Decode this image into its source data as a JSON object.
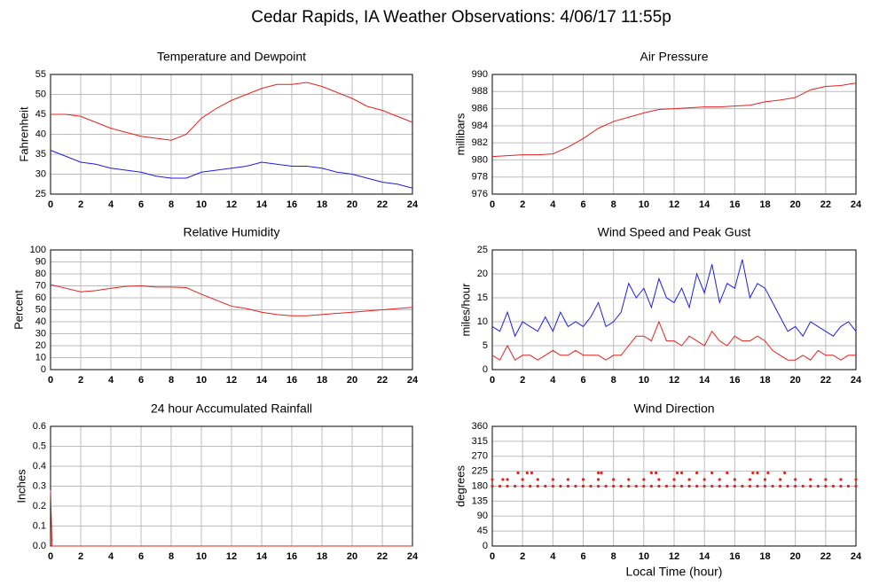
{
  "title": "Cedar Rapids, IA Weather Observations: 4/06/17 11:55p",
  "xlabel": "Local Time (hour)",
  "chart_data": [
    {
      "type": "line",
      "title": "Temperature and Dewpoint",
      "ylabel": "Fahrenheit",
      "x": [
        0,
        1,
        2,
        3,
        4,
        5,
        6,
        7,
        8,
        9,
        10,
        11,
        12,
        13,
        14,
        15,
        16,
        17,
        18,
        19,
        20,
        21,
        22,
        23,
        24
      ],
      "xlim": [
        0,
        24
      ],
      "xticks": [
        0,
        2,
        4,
        6,
        8,
        10,
        12,
        14,
        16,
        18,
        20,
        22,
        24
      ],
      "ylim": [
        25,
        55
      ],
      "yticks": [
        25,
        30,
        35,
        40,
        45,
        50,
        55
      ],
      "grid": true,
      "series": [
        {
          "color": "#e8201c",
          "values": [
            45,
            45,
            44.5,
            43,
            41.5,
            40.5,
            39.5,
            39,
            38.5,
            40,
            44,
            46.5,
            48.5,
            50,
            51.5,
            52.5,
            52.5,
            53,
            52,
            50.5,
            49,
            47,
            46,
            44.5,
            43
          ]
        },
        {
          "color": "#1c1ce8",
          "values": [
            36,
            34.5,
            33,
            32.5,
            31.5,
            31,
            30.5,
            29.5,
            29,
            29,
            30.5,
            31,
            31.5,
            32,
            33,
            32.5,
            32,
            32,
            31.5,
            30.5,
            30,
            29,
            28,
            27.5,
            26.5
          ]
        }
      ]
    },
    {
      "type": "line",
      "title": "Air Pressure",
      "ylabel": "millibars",
      "x": [
        0,
        1,
        2,
        3,
        4,
        5,
        6,
        7,
        8,
        9,
        10,
        11,
        12,
        13,
        14,
        15,
        16,
        17,
        18,
        19,
        20,
        21,
        22,
        23,
        24
      ],
      "xlim": [
        0,
        24
      ],
      "xticks": [
        0,
        2,
        4,
        6,
        8,
        10,
        12,
        14,
        16,
        18,
        20,
        22,
        24
      ],
      "ylim": [
        976,
        990
      ],
      "yticks": [
        976,
        978,
        980,
        982,
        984,
        986,
        988,
        990
      ],
      "grid": true,
      "series": [
        {
          "color": "#e8201c",
          "values": [
            980.4,
            980.5,
            980.6,
            980.6,
            980.7,
            981.5,
            982.5,
            983.7,
            984.5,
            985,
            985.5,
            985.9,
            986,
            986.1,
            986.2,
            986.2,
            986.3,
            986.4,
            986.8,
            987,
            987.3,
            988.2,
            988.6,
            988.7,
            989
          ]
        }
      ]
    },
    {
      "type": "line",
      "title": "Relative Humidity",
      "ylabel": "Percent",
      "x": [
        0,
        1,
        2,
        3,
        4,
        5,
        6,
        7,
        8,
        9,
        10,
        11,
        12,
        13,
        14,
        15,
        16,
        17,
        18,
        19,
        20,
        21,
        22,
        23,
        24
      ],
      "xlim": [
        0,
        24
      ],
      "xticks": [
        0,
        2,
        4,
        6,
        8,
        10,
        12,
        14,
        16,
        18,
        20,
        22,
        24
      ],
      "ylim": [
        0,
        100
      ],
      "yticks": [
        0,
        10,
        20,
        30,
        40,
        50,
        60,
        70,
        80,
        90,
        100
      ],
      "grid": true,
      "series": [
        {
          "color": "#e8201c",
          "values": [
            71,
            68,
            65,
            66,
            68,
            69.5,
            70,
            69,
            69,
            68.5,
            63,
            58,
            53,
            51,
            48,
            46,
            45,
            45,
            46,
            47,
            48,
            49,
            50,
            51,
            52
          ]
        }
      ]
    },
    {
      "type": "line",
      "title": "Wind Speed and Peak Gust",
      "ylabel": "miles/hour",
      "x": [
        0,
        0.5,
        1,
        1.5,
        2,
        2.5,
        3,
        3.5,
        4,
        4.5,
        5,
        5.5,
        6,
        6.5,
        7,
        7.5,
        8,
        8.5,
        9,
        9.5,
        10,
        10.5,
        11,
        11.5,
        12,
        12.5,
        13,
        13.5,
        14,
        14.5,
        15,
        15.5,
        16,
        16.5,
        17,
        17.5,
        18,
        18.5,
        19,
        19.5,
        20,
        20.5,
        21,
        21.5,
        22,
        22.5,
        23,
        23.5,
        24
      ],
      "xlim": [
        0,
        24
      ],
      "xticks": [
        0,
        2,
        4,
        6,
        8,
        10,
        12,
        14,
        16,
        18,
        20,
        22,
        24
      ],
      "ylim": [
        0,
        25
      ],
      "yticks": [
        0,
        5,
        10,
        15,
        20,
        25
      ],
      "grid": true,
      "series": [
        {
          "color": "#1c1ce8",
          "values": [
            9,
            8,
            12,
            7,
            10,
            9,
            8,
            11,
            8,
            12,
            9,
            10,
            9,
            11,
            14,
            9,
            10,
            12,
            18,
            15,
            17,
            13,
            19,
            15,
            14,
            17,
            13,
            20,
            16,
            22,
            14,
            18,
            17,
            23,
            15,
            18,
            17,
            14,
            11,
            8,
            9,
            7,
            10,
            9,
            8,
            7,
            9,
            10,
            8
          ]
        },
        {
          "color": "#e8201c",
          "values": [
            3,
            2,
            5,
            2,
            3,
            3,
            2,
            3,
            4,
            3,
            3,
            4,
            3,
            3,
            3,
            2,
            3,
            3,
            5,
            7,
            7,
            6,
            10,
            6,
            6,
            5,
            7,
            6,
            5,
            8,
            6,
            5,
            7,
            6,
            6,
            7,
            6,
            4,
            3,
            2,
            2,
            3,
            2,
            4,
            3,
            3,
            2,
            3,
            3
          ]
        }
      ]
    },
    {
      "type": "line",
      "title": "24 hour Accumulated Rainfall",
      "ylabel": "Inches",
      "x": [
        0,
        0.1,
        24
      ],
      "xlim": [
        0,
        24
      ],
      "xticks": [
        0,
        2,
        4,
        6,
        8,
        10,
        12,
        14,
        16,
        18,
        20,
        22,
        24
      ],
      "ylim": [
        0,
        0.6
      ],
      "yticks": [
        {
          "value": 0,
          "label": "0.0"
        },
        0.1,
        0.2,
        0.3,
        0.4,
        0.5,
        0.6
      ],
      "grid": true,
      "series": [
        {
          "color": "#e8201c",
          "values": [
            0.28,
            0,
            0
          ]
        }
      ]
    },
    {
      "type": "scatter",
      "title": "Wind Direction",
      "ylabel": "degrees",
      "xlim": [
        0,
        24
      ],
      "xticks": [
        0,
        2,
        4,
        6,
        8,
        10,
        12,
        14,
        16,
        18,
        20,
        22,
        24
      ],
      "ylim": [
        0,
        360
      ],
      "yticks": [
        0,
        45,
        90,
        135,
        180,
        225,
        270,
        315,
        360
      ],
      "grid": true,
      "series": [
        {
          "color": "#e8201c",
          "x": [
            0,
            0.5,
            1,
            1.5,
            2,
            2.5,
            3,
            3.5,
            4,
            4.5,
            5,
            5.5,
            6,
            6.5,
            7,
            7.5,
            8,
            8.5,
            9,
            9.5,
            10,
            10.5,
            11,
            11.5,
            12,
            12.5,
            13,
            13.5,
            14,
            14.5,
            15,
            15.5,
            16,
            16.5,
            17,
            17.5,
            18,
            18.5,
            19,
            19.5,
            20,
            20.5,
            21,
            21.5,
            22,
            22.5,
            23,
            23.5,
            24
          ],
          "values": [
            180,
            180,
            180,
            180,
            180,
            180,
            180,
            180,
            180,
            180,
            180,
            180,
            180,
            180,
            180,
            180,
            180,
            180,
            180,
            180,
            180,
            180,
            180,
            180,
            180,
            180,
            180,
            180,
            180,
            180,
            180,
            180,
            180,
            180,
            180,
            180,
            180,
            180,
            180,
            180,
            180,
            180,
            180,
            180,
            180,
            180,
            180,
            180,
            180
          ]
        },
        {
          "color": "#e8201c",
          "x": [
            0,
            0.7,
            1,
            2,
            3,
            4,
            5,
            6,
            7,
            8,
            9,
            10,
            11,
            12,
            13,
            14,
            15,
            16,
            17,
            18,
            19,
            20,
            21,
            22,
            23,
            24
          ],
          "values": [
            200,
            200,
            200,
            200,
            200,
            200,
            200,
            200,
            200,
            200,
            200,
            200,
            200,
            200,
            200,
            200,
            200,
            200,
            200,
            200,
            200,
            200,
            200,
            200,
            200,
            200
          ]
        },
        {
          "color": "#e8201c",
          "x": [
            1.7,
            2.3,
            2.6,
            7,
            7.2,
            10.5,
            10.8,
            12.2,
            12.5,
            13.5,
            14.5,
            15.5,
            17.2,
            17.5,
            18.2,
            19.3
          ],
          "values": [
            220,
            220,
            220,
            220,
            220,
            220,
            220,
            220,
            220,
            220,
            220,
            220,
            220,
            220,
            220,
            220
          ]
        }
      ]
    }
  ]
}
